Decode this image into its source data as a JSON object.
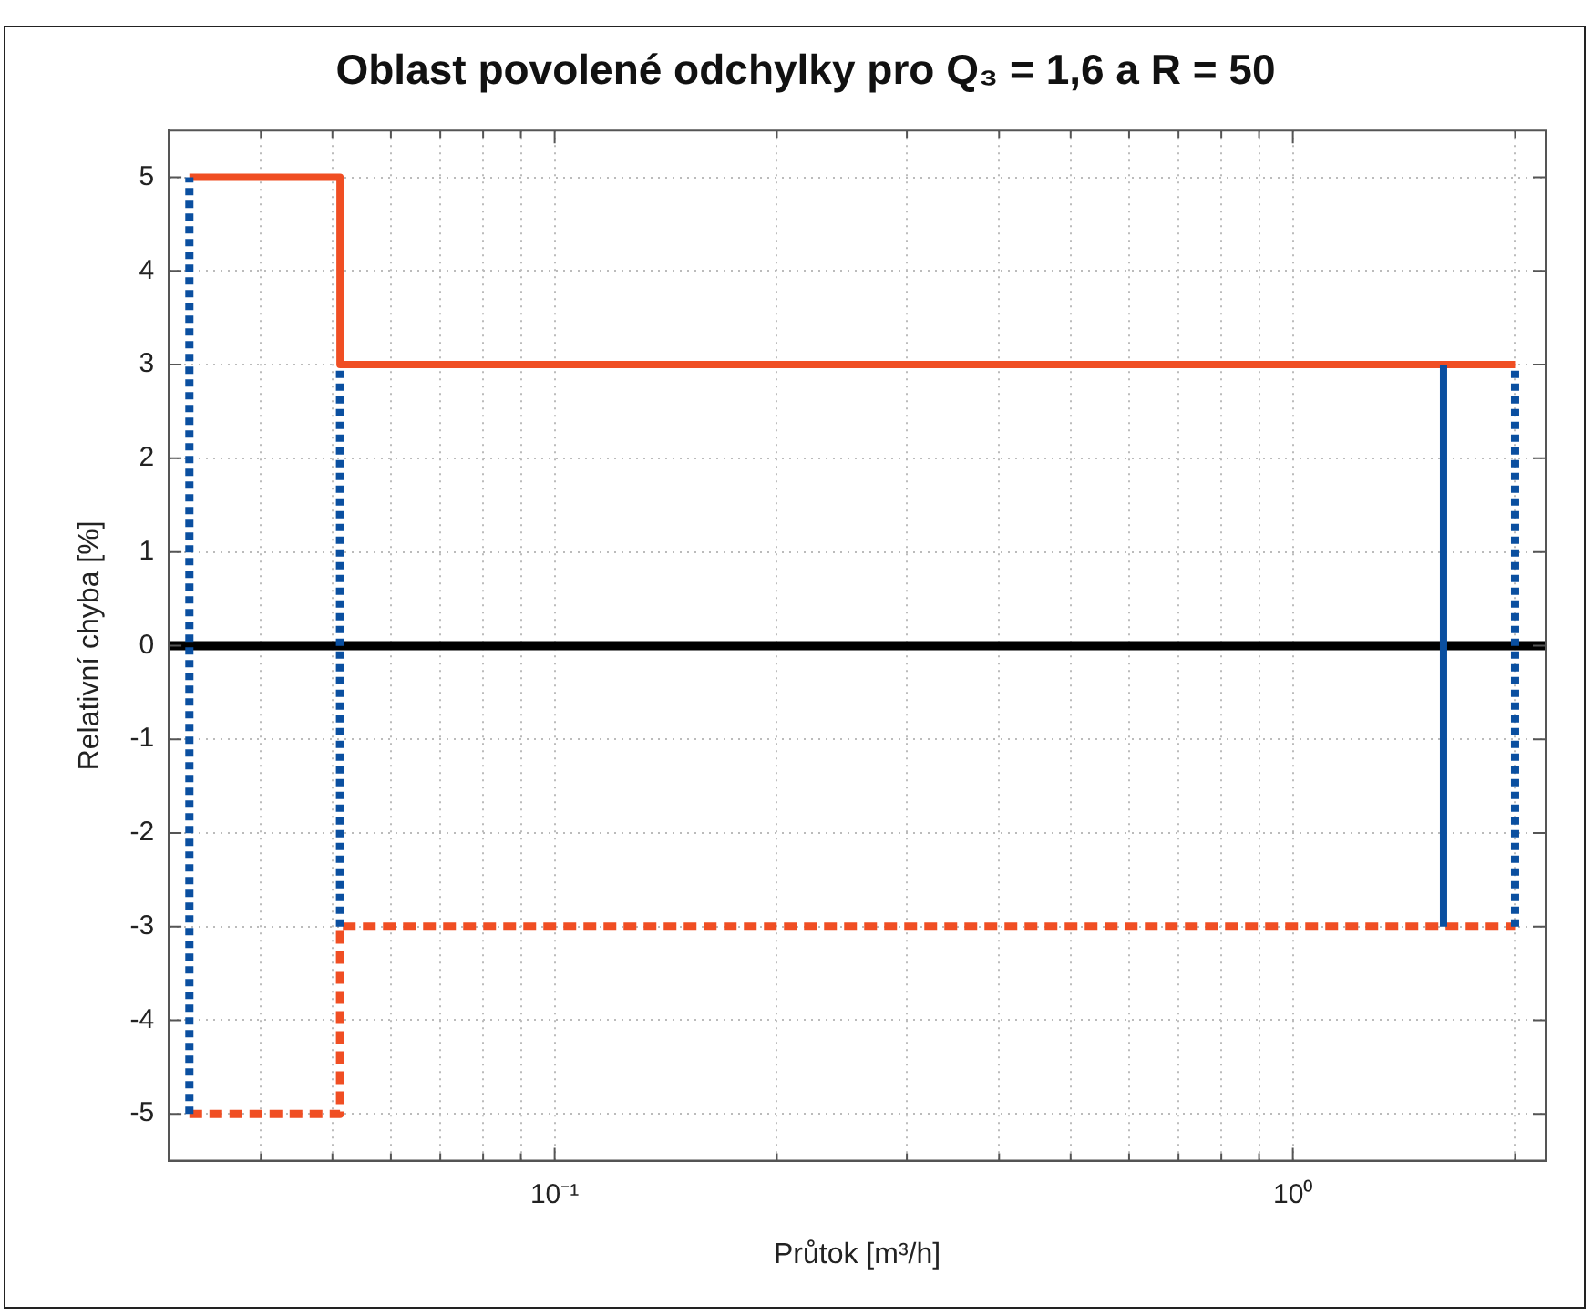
{
  "chart_data": {
    "type": "line",
    "title": "Oblast povolené odchylky pro Q₃ = 1,6 a R = 50",
    "xlabel": "Průtok [m³/h]",
    "ylabel": "Relativní chyba [%]",
    "log": "x",
    "xlim": [
      0.03,
      2.2
    ],
    "ylim": [
      -5.5,
      5.5
    ],
    "xticks": [
      {
        "value": 0.03,
        "label": null
      },
      {
        "value": 0.04,
        "label": null
      },
      {
        "value": 0.05,
        "label": null
      },
      {
        "value": 0.06,
        "label": null
      },
      {
        "value": 0.07,
        "label": null
      },
      {
        "value": 0.08,
        "label": null
      },
      {
        "value": 0.09,
        "label": null
      },
      {
        "value": 0.1,
        "label": "10⁻¹"
      },
      {
        "value": 0.2,
        "label": null
      },
      {
        "value": 0.3,
        "label": null
      },
      {
        "value": 0.4,
        "label": null
      },
      {
        "value": 0.5,
        "label": null
      },
      {
        "value": 0.6,
        "label": null
      },
      {
        "value": 0.7,
        "label": null
      },
      {
        "value": 0.8,
        "label": null
      },
      {
        "value": 0.9,
        "label": null
      },
      {
        "value": 1,
        "label": "10⁰"
      },
      {
        "value": 2,
        "label": null
      }
    ],
    "yticks": [
      -5,
      -4,
      -3,
      -2,
      -1,
      0,
      1,
      2,
      3,
      4,
      5
    ],
    "grid": true,
    "marker": "none",
    "ref_lines": [
      {
        "axis": "y",
        "value": 0,
        "color": "#000000"
      }
    ],
    "series": [
      {
        "color": "#0a4fa0",
        "line_style": "dotted",
        "x": [
          0.032,
          0.032
        ],
        "values": [
          -5,
          5
        ]
      },
      {
        "color": "#0a4fa0",
        "line_style": "dotted",
        "x": [
          0.0512,
          0.0512
        ],
        "values": [
          -3,
          3
        ]
      },
      {
        "color": "#0a4fa0",
        "line_style": "dotted",
        "x": [
          2,
          2
        ],
        "values": [
          -3,
          3
        ]
      },
      {
        "color": "#0a4fa0",
        "line_style": "solid",
        "x": [
          1.6,
          1.6
        ],
        "values": [
          -3,
          3
        ]
      },
      {
        "color": "#f04e23",
        "line_style": "solid",
        "x": [
          0.032,
          0.0512,
          0.0512,
          2
        ],
        "values": [
          5,
          5,
          3,
          3
        ]
      },
      {
        "color": "#f04e23",
        "line_style": "dashed",
        "x": [
          0.032,
          0.0512,
          0.0512,
          2
        ],
        "values": [
          -5,
          -5,
          -3,
          -3
        ]
      }
    ]
  }
}
